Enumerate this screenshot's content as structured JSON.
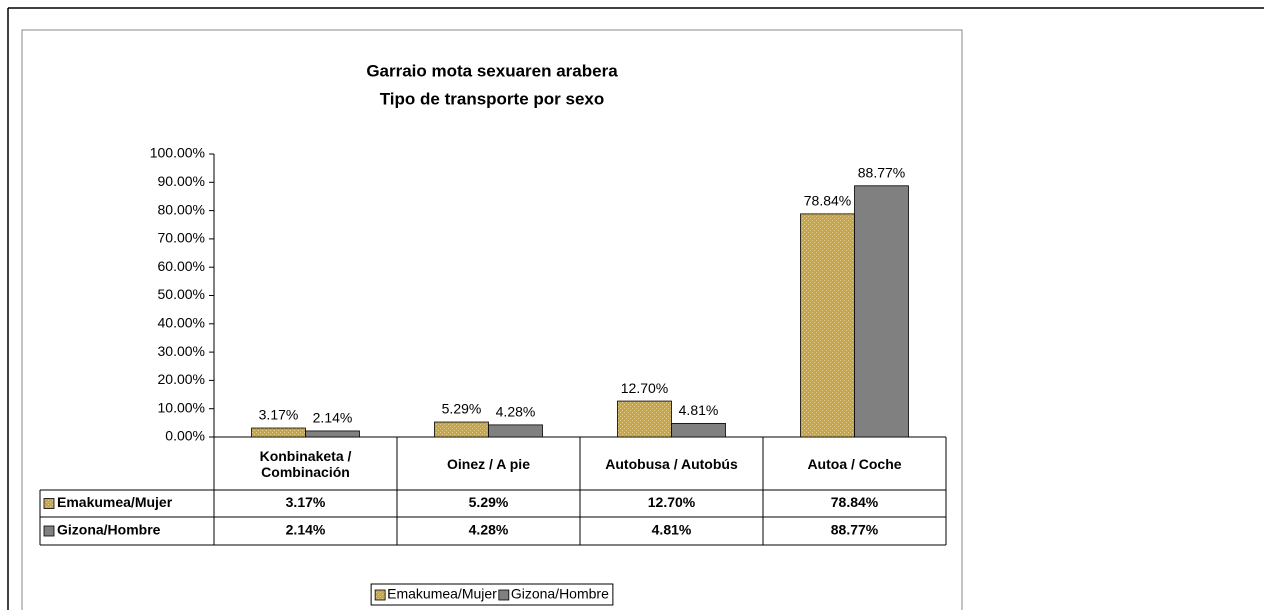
{
  "chart_data": {
    "type": "bar",
    "title": "Garraio mota sexuaren arabera",
    "subtitle": "Tipo de transporte por sexo",
    "categories": [
      "Konbinaketa / Combinación",
      "Oinez / A pie",
      "Autobusa / Autobús",
      "Autoa / Coche"
    ],
    "series": [
      {
        "name": "Emakumea/Mujer",
        "color": "#c8a646",
        "values": [
          3.17,
          5.29,
          12.7,
          78.84
        ],
        "value_labels": [
          "3.17%",
          "5.29%",
          "12.70%",
          "78.84%"
        ]
      },
      {
        "name": "Gizona/Hombre",
        "color": "#808080",
        "values": [
          2.14,
          4.28,
          4.81,
          88.77
        ],
        "value_labels": [
          "2.14%",
          "4.28%",
          "4.81%",
          "88.77%"
        ]
      }
    ],
    "ylim": [
      0,
      100
    ],
    "yticks": [
      {
        "value": 0,
        "label": "0.00%"
      },
      {
        "value": 10,
        "label": "10.00%"
      },
      {
        "value": 20,
        "label": "20.00%"
      },
      {
        "value": 30,
        "label": "30.00%"
      },
      {
        "value": 40,
        "label": "40.00%"
      },
      {
        "value": 50,
        "label": "50.00%"
      },
      {
        "value": 60,
        "label": "60.00%"
      },
      {
        "value": 70,
        "label": "70.00%"
      },
      {
        "value": 80,
        "label": "80.00%"
      },
      {
        "value": 90,
        "label": "90.00%"
      },
      {
        "value": 100,
        "label": "100.00%"
      }
    ],
    "grid": false,
    "legend": "bottom"
  }
}
